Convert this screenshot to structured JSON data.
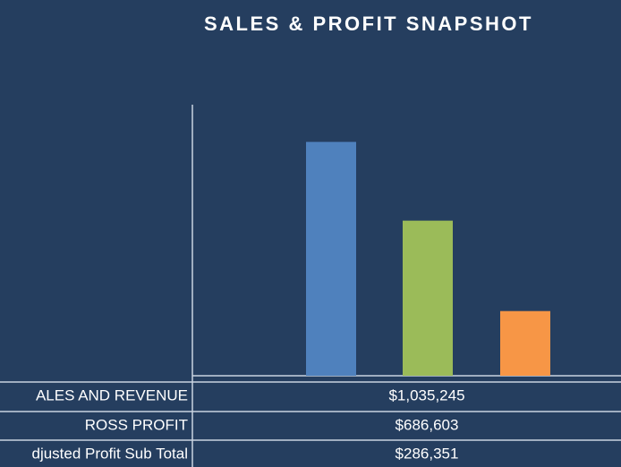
{
  "chart_data": {
    "type": "bar",
    "title": "SALES & PROFIT SNAPSHOT",
    "categories": [
      "ALES AND REVENUE",
      "ROSS PROFIT",
      "djusted Profit  Sub Total"
    ],
    "values": [
      1035245,
      686603,
      286351
    ],
    "value_labels": [
      "$1,035,245",
      "$686,603",
      "$286,351"
    ],
    "colors": [
      "#4f81bd",
      "#9bbb59",
      "#f79646"
    ],
    "ylim": [
      0,
      1200000
    ]
  }
}
